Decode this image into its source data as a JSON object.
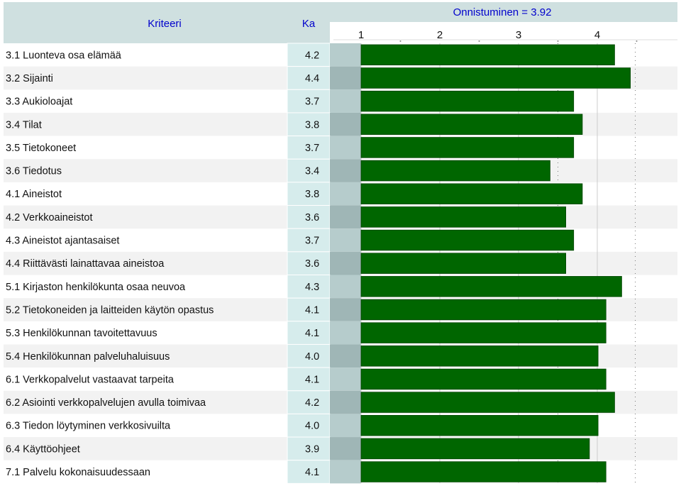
{
  "header": {
    "criteria_label": "Kriteeri",
    "mean_label": "Ka",
    "success_label": "Onnistuminen = 3.92"
  },
  "colors": {
    "header_bg": "#cfe0e0",
    "header_text": "#0000cc",
    "row_alt": "#f2f2f2",
    "mean_bg": "#d6ecec",
    "bar": "#006600",
    "bar_edge": "#004400",
    "band_light": "#b6cccc",
    "band_dark": "#9fb6b6"
  },
  "chart_data": {
    "type": "bar",
    "orientation": "horizontal",
    "xlim": [
      1,
      4.5
    ],
    "xticks": [
      "1",
      "2",
      "3",
      "4"
    ],
    "reference_line": 3.92,
    "categories": [
      "3.1 Luonteva osa elämää",
      "3.2 Sijainti",
      "3.3 Aukioloajat",
      "3.4 Tilat",
      "3.5 Tietokoneet",
      "3.6 Tiedotus",
      "4.1 Aineistot",
      "4.2 Verkkoaineistot",
      "4.3 Aineistot ajantasaiset",
      "4.4 Riittävästi lainattavaa aineistoa",
      "5.1 Kirjaston henkilökunta osaa neuvoa",
      "5.2 Tietokoneiden ja laitteiden käytön opastus",
      "5.3 Henkilökunnan tavoitettavuus",
      "5.4 Henkilökunnan palveluhaluisuus",
      "6.1 Verkkopalvelut vastaavat tarpeita",
      "6.2 Asiointi verkkopalvelujen avulla toimivaa",
      "6.3 Tiedon löytyminen verkkosivuilta",
      "6.4 Käyttöohjeet",
      "7.1 Palvelu kokonaisuudessaan"
    ],
    "mean_labels": [
      "4.2",
      "4.4",
      "3.7",
      "3.8",
      "3.7",
      "3.4",
      "3.8",
      "3.6",
      "3.7",
      "3.6",
      "4.3",
      "4.1",
      "4.1",
      "4.0",
      "4.1",
      "4.2",
      "4.0",
      "3.9",
      "4.1"
    ],
    "values": [
      4.22,
      4.42,
      3.7,
      3.81,
      3.7,
      3.4,
      3.81,
      3.6,
      3.7,
      3.6,
      4.31,
      4.11,
      4.11,
      4.01,
      4.11,
      4.22,
      4.01,
      3.9,
      4.11
    ]
  }
}
